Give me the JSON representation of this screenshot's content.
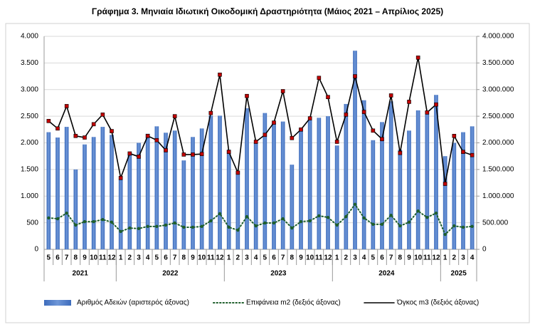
{
  "chart_data": {
    "type": "bar",
    "title": "Γράφημα 3. Μηνιαία Ιδιωτική Οικοδομική Δραστηριότητα (Μάιος 2021 – Απρίλιος 2025)",
    "categories": [
      "5",
      "6",
      "7",
      "8",
      "9",
      "10",
      "11",
      "12",
      "1",
      "2",
      "3",
      "4",
      "5",
      "6",
      "7",
      "8",
      "9",
      "10",
      "11",
      "12",
      "1",
      "2",
      "3",
      "4",
      "5",
      "6",
      "7",
      "8",
      "9",
      "10",
      "11",
      "12",
      "1",
      "2",
      "3",
      "4",
      "5",
      "6",
      "7",
      "8",
      "9",
      "10",
      "11",
      "12",
      "1",
      "2",
      "3",
      "4"
    ],
    "year_labels": [
      "2021",
      "2022",
      "2023",
      "2024",
      "2025"
    ],
    "series": [
      {
        "name": "Αριθμός Αδειών (αριστερός άξονας)",
        "type": "bar",
        "color": "#3d6cbc",
        "values": [
          2200,
          2100,
          2300,
          1500,
          1970,
          2110,
          2300,
          2150,
          1320,
          1820,
          2000,
          2170,
          2310,
          2190,
          2230,
          1670,
          2110,
          2270,
          2510,
          2510,
          1870,
          1470,
          2650,
          2000,
          2560,
          2380,
          2400,
          1590,
          2270,
          2430,
          2470,
          2500,
          1950,
          2730,
          3730,
          2800,
          2050,
          2390,
          2780,
          1870,
          2230,
          2610,
          2600,
          2900,
          1750,
          2000,
          2200,
          2310
        ]
      },
      {
        "name": "Επιφάνεια m2 (δεξιός άξονας)",
        "type": "line",
        "axis": "y2",
        "color": "#1e5e2b",
        "dashed": true,
        "values": [
          590000,
          575000,
          680000,
          455000,
          520000,
          520000,
          560000,
          510000,
          335000,
          400000,
          390000,
          430000,
          430000,
          455000,
          495000,
          415000,
          415000,
          430000,
          535000,
          670000,
          415000,
          360000,
          615000,
          440000,
          495000,
          495000,
          575000,
          400000,
          520000,
          535000,
          630000,
          600000,
          455000,
          615000,
          845000,
          590000,
          470000,
          470000,
          640000,
          440000,
          510000,
          720000,
          600000,
          680000,
          280000,
          440000,
          415000,
          430000
        ]
      },
      {
        "name": "Όγκος m3 (δεξιός άξονας)",
        "type": "line",
        "axis": "y2",
        "color": "#000000",
        "marker_color": "#c00000",
        "values": [
          2410000,
          2270000,
          2690000,
          2130000,
          2100000,
          2350000,
          2530000,
          2220000,
          1340000,
          1800000,
          1740000,
          2130000,
          2050000,
          1860000,
          2500000,
          1780000,
          1780000,
          1790000,
          2560000,
          3280000,
          1830000,
          1440000,
          2880000,
          2020000,
          2150000,
          2380000,
          2970000,
          2090000,
          2250000,
          2460000,
          3220000,
          2860000,
          2020000,
          2530000,
          3250000,
          2580000,
          2230000,
          2070000,
          2890000,
          1810000,
          2770000,
          3600000,
          2570000,
          2720000,
          1230000,
          2130000,
          1830000,
          1770000
        ]
      }
    ],
    "ylim": [
      0,
      4000
    ],
    "yticks": [
      {
        "value": 0,
        "label": "0"
      },
      {
        "value": 500,
        "label": "500"
      },
      {
        "value": 1000,
        "label": "1.000"
      },
      {
        "value": 1500,
        "label": "1.500"
      },
      {
        "value": 2000,
        "label": "2.000"
      },
      {
        "value": 2500,
        "label": "2.500"
      },
      {
        "value": 3000,
        "label": "3.000"
      },
      {
        "value": 3500,
        "label": "3.500"
      },
      {
        "value": 4000,
        "label": "4.000"
      }
    ],
    "y2lim": [
      0,
      4000000
    ],
    "y2ticks": [
      {
        "value": 0,
        "label": "0"
      },
      {
        "value": 500000,
        "label": "500.000"
      },
      {
        "value": 1000000,
        "label": "1.000.000"
      },
      {
        "value": 1500000,
        "label": "1.500.000"
      },
      {
        "value": 2000000,
        "label": "2.000.000"
      },
      {
        "value": 2500000,
        "label": "2.500.000"
      },
      {
        "value": 3000000,
        "label": "3.000.000"
      },
      {
        "value": 3500000,
        "label": "3.500.000"
      },
      {
        "value": 4000000,
        "label": "4.000.000"
      }
    ],
    "grid": true
  }
}
